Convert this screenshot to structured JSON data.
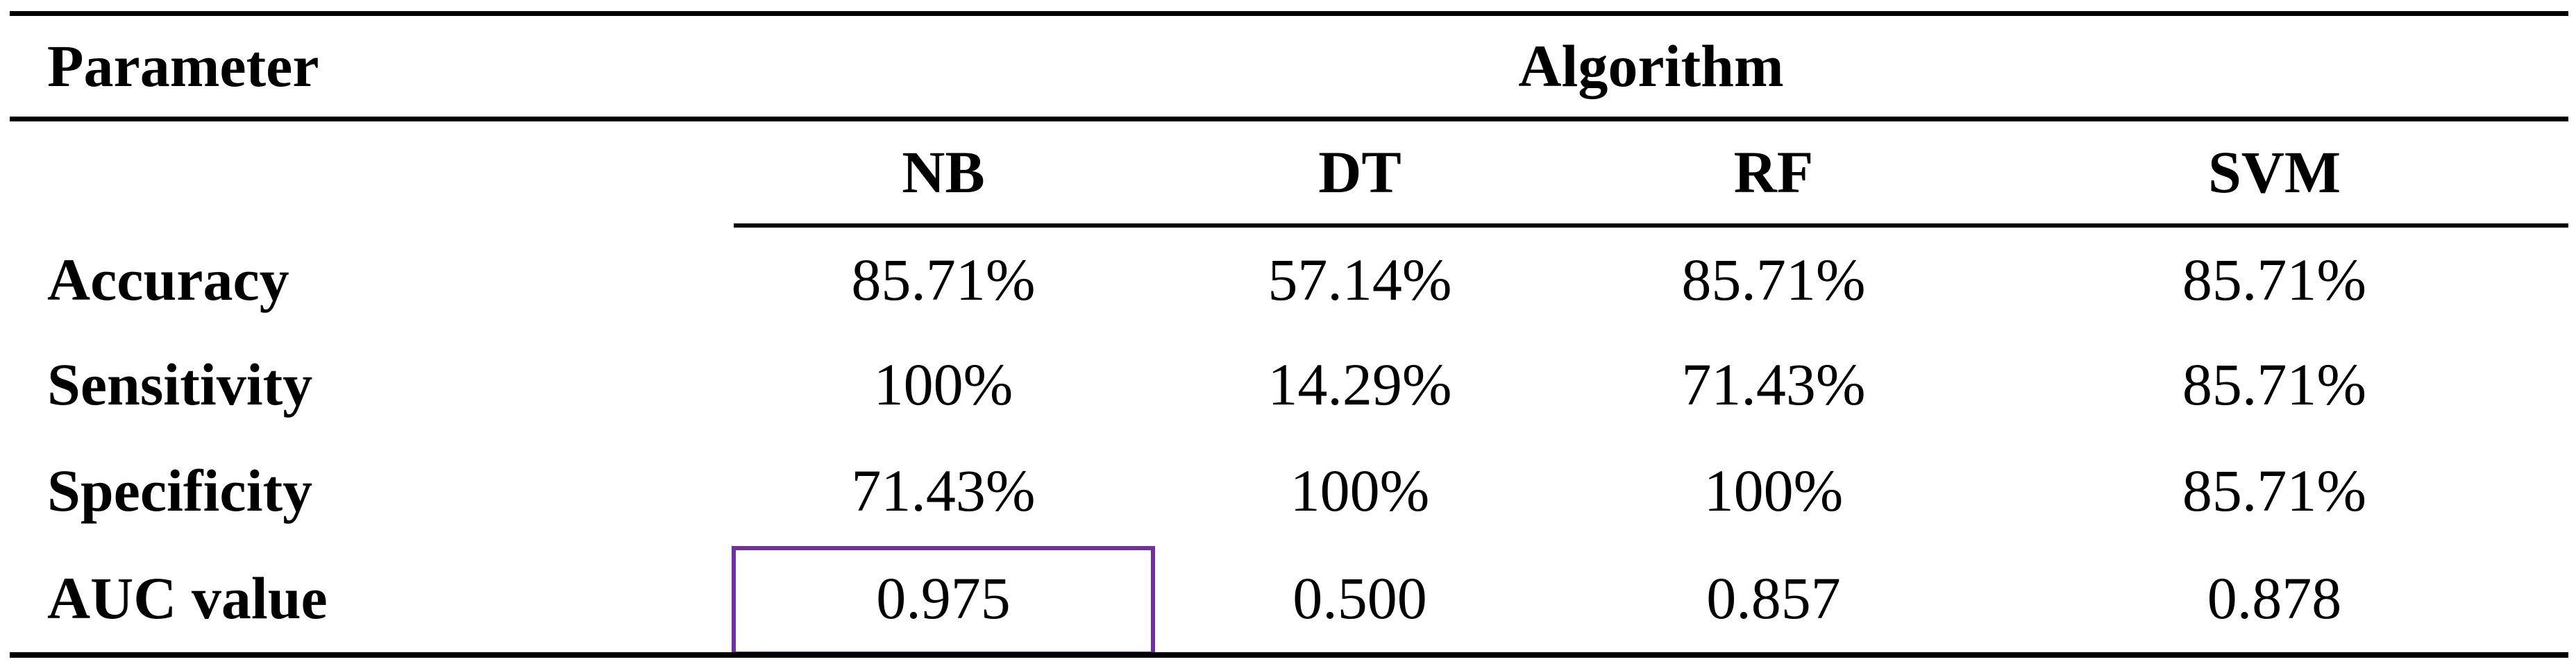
{
  "header": {
    "parameter": "Parameter",
    "algorithm": "Algorithm"
  },
  "columns": [
    "NB",
    "DT",
    "RF",
    "SVM"
  ],
  "rows": [
    {
      "label": "Accuracy",
      "values": [
        "85.71%",
        "57.14%",
        "85.71%",
        "85.71%"
      ]
    },
    {
      "label": "Sensitivity",
      "values": [
        "100%",
        "14.29%",
        "71.43%",
        "85.71%"
      ]
    },
    {
      "label": "Specificity",
      "values": [
        "71.43%",
        "100%",
        "100%",
        "85.71%"
      ]
    },
    {
      "label": "AUC value",
      "values": [
        "0.975",
        "0.500",
        "0.857",
        "0.878"
      ]
    }
  ],
  "highlight": {
    "row": "AUC value",
    "column": "NB",
    "value": "0.975",
    "border_color": "#7030A0"
  }
}
